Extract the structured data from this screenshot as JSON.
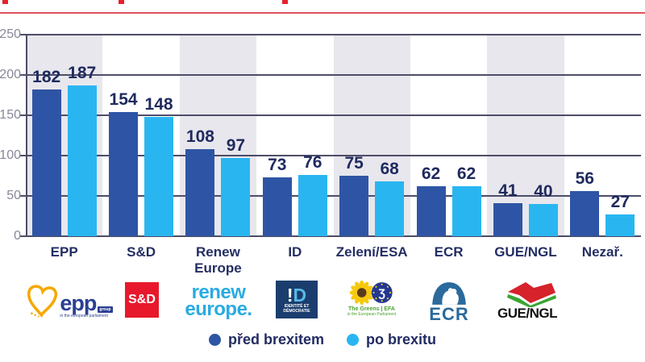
{
  "chart_data": {
    "type": "bar",
    "title_visible": false,
    "categories": [
      "EPP",
      "S&D",
      "Renew Europe",
      "ID",
      "Zelení/ESA",
      "ECR",
      "GUE/NGL",
      "Nezař."
    ],
    "series": [
      {
        "name": "před brexitem",
        "color": "#2e55a5",
        "values": [
          182,
          154,
          108,
          73,
          75,
          62,
          41,
          56
        ]
      },
      {
        "name": "po brexitu",
        "color": "#29b6f0",
        "values": [
          187,
          148,
          97,
          76,
          68,
          62,
          40,
          27
        ]
      }
    ],
    "ylim": [
      0,
      250
    ],
    "ytick_interval": 50,
    "yticks": [
      "0",
      "50",
      "100",
      "150",
      "200",
      "250"
    ],
    "grid": true,
    "band_fill": "#e8e7ed",
    "legend_position": "bottom"
  },
  "logos": {
    "epp": {
      "word": "epp",
      "badge": "group",
      "subtitle": "in the european parliament"
    },
    "sd": {
      "label": "S&D"
    },
    "renew": {
      "line1": "renew",
      "line2": "europe."
    },
    "id": {
      "bang": "!",
      "dee": "D",
      "subtitle": "IDENTITÉ ET DÉMOCRATIE"
    },
    "greens": {
      "glyph": "Ʒ",
      "line1": "The Greens | EFA",
      "line2": "in the European Parliament"
    },
    "ecr": {
      "label": "ECR"
    },
    "gue": {
      "label": "GUE/NGL"
    }
  },
  "colors": {
    "before": "#2e55a5",
    "after": "#29b6f0",
    "navy_text": "#222c63",
    "grid": "#4d4d68",
    "band": "#e8e7ed",
    "red_divider": "#e0525c"
  }
}
